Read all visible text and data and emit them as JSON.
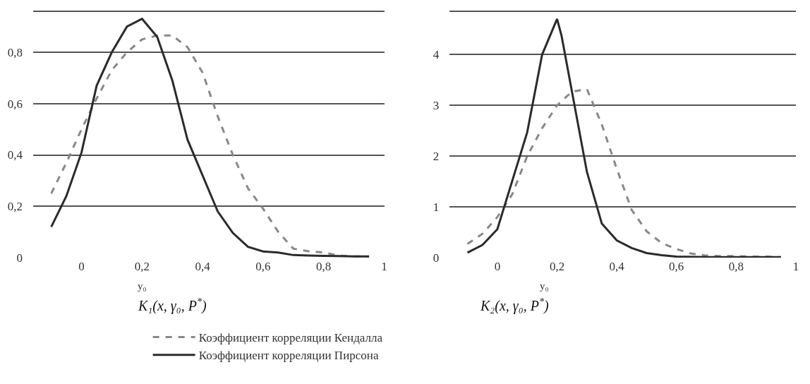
{
  "chart_data": [
    {
      "type": "line",
      "xlabel": "y₀",
      "annotations": [
        "K₁(x, γ₀, P$^{*}$)"
      ],
      "x": [
        -0.1,
        -0.05,
        0,
        0.05,
        0.1,
        0.15,
        0.2,
        0.25,
        0.3,
        0.35,
        0.4,
        0.45,
        0.5,
        0.55,
        0.6,
        0.65,
        0.7,
        0.75,
        0.8,
        0.85,
        0.9,
        0.95
      ],
      "series": [
        {
          "name": "Коэффициент корреляции Кендалла",
          "color": "#888888",
          "line_style": "dashed",
          "values": [
            0.25,
            0.37,
            0.5,
            0.62,
            0.73,
            0.8,
            0.85,
            0.865,
            0.865,
            0.82,
            0.72,
            0.55,
            0.4,
            0.27,
            0.19,
            0.1,
            0.035,
            0.025,
            0.02,
            0.008,
            0.005,
            0.004
          ]
        },
        {
          "name": "Коэффициент корреляции Пирсона",
          "color": "#2b2b2b",
          "line_style": "solid",
          "values": [
            0.12,
            0.24,
            0.41,
            0.67,
            0.8,
            0.9,
            0.93,
            0.86,
            0.69,
            0.46,
            0.32,
            0.18,
            0.096,
            0.042,
            0.024,
            0.02,
            0.01,
            0.008,
            0.007,
            0.006,
            0.005,
            0.005
          ]
        }
      ],
      "xlim": [
        -0.16,
        1.0
      ],
      "xticks": [
        0,
        {
          "value": 0.2,
          "label": "0,2"
        },
        {
          "value": 0.4,
          "label": "0,4"
        },
        {
          "value": 0.6,
          "label": "0,6"
        },
        {
          "value": 0.8,
          "label": "0,8"
        },
        1
      ],
      "ylim": [
        0,
        0.965
      ],
      "yticks": [
        0,
        {
          "value": 0.2,
          "label": "0,2"
        },
        {
          "value": 0.4,
          "label": "0,4"
        },
        {
          "value": 0.6,
          "label": "0,6"
        },
        {
          "value": 0.8,
          "label": "0,8"
        },
        {
          "value": 0.96,
          "label": null
        }
      ],
      "grid": "y",
      "legend": "bottom"
    },
    {
      "type": "line",
      "xlabel": "y₀",
      "annotations": [
        "K₂(x, γ₀, P$^{*}$)"
      ],
      "x": [
        -0.1,
        -0.05,
        0,
        0.05,
        0.1,
        0.15,
        0.2,
        0.25,
        0.3,
        0.35,
        0.4,
        0.45,
        0.5,
        0.55,
        0.6,
        0.65,
        0.7,
        0.75,
        0.8,
        0.85,
        0.9,
        0.95
      ],
      "series": [
        {
          "color": "#888888",
          "line_style": "dashed",
          "values": [
            0.27,
            0.47,
            0.8,
            1.25,
            2.0,
            2.55,
            3.0,
            3.27,
            3.32,
            2.62,
            1.75,
            0.94,
            0.52,
            0.29,
            0.17,
            0.08,
            0.04,
            0.03,
            0.03,
            0.02,
            0.02,
            0.01
          ]
        },
        {
          "color": "#2b2b2b",
          "line_style": "solid",
          "x": [
            -0.1,
            -0.05,
            0,
            0.1,
            0.15,
            0.2,
            0.215,
            0.3,
            0.35,
            0.4,
            0.45,
            0.5,
            0.55,
            0.6,
            0.7,
            0.8,
            0.95
          ],
          "values": [
            0.1,
            0.25,
            0.56,
            2.47,
            4.0,
            4.7,
            4.37,
            1.69,
            0.67,
            0.34,
            0.19,
            0.09,
            0.05,
            0.02,
            0.01,
            0.01,
            0.01
          ]
        }
      ],
      "xlim": [
        -0.16,
        1.0
      ],
      "xticks": [
        0,
        {
          "value": 0.2,
          "label": "0,2"
        },
        {
          "value": 0.4,
          "label": "0,4"
        },
        {
          "value": 0.6,
          "label": "0,6"
        },
        {
          "value": 0.8,
          "label": "0,8"
        },
        1
      ],
      "ylim": [
        0,
        4.88
      ],
      "yticks": [
        0,
        1,
        2,
        3,
        4,
        {
          "value": 4.85,
          "label": null
        }
      ],
      "grid": "y"
    }
  ]
}
